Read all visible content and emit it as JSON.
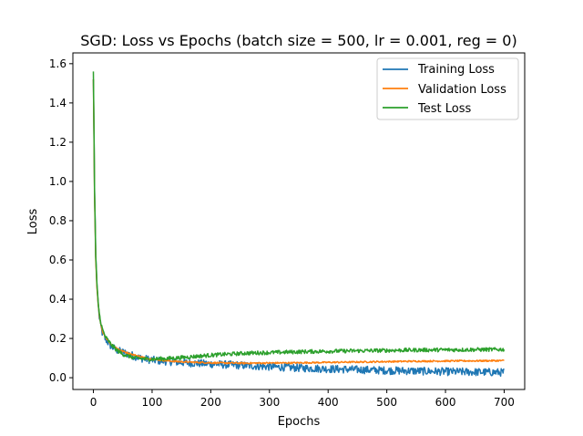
{
  "chart_data": {
    "type": "line",
    "title": "SGD: Loss vs Epochs (batch size = 500, lr = 0.001, reg = 0)",
    "xlabel": "Epochs",
    "ylabel": "Loss",
    "xlim": [
      -35,
      735
    ],
    "ylim": [
      -0.06,
      1.655
    ],
    "xticks": [
      0,
      100,
      200,
      300,
      400,
      500,
      600,
      700
    ],
    "yticks": [
      0.0,
      0.2,
      0.4,
      0.6,
      0.8,
      1.0,
      1.2,
      1.4,
      1.6
    ],
    "xtick_labels": [
      "0",
      "100",
      "200",
      "300",
      "400",
      "500",
      "600",
      "700"
    ],
    "ytick_labels": [
      "0.0",
      "0.2",
      "0.4",
      "0.6",
      "0.8",
      "1.0",
      "1.2",
      "1.4",
      "1.6"
    ],
    "grid": false,
    "legend_position": "top-right",
    "series": [
      {
        "name": "Training Loss",
        "color": "#1f77b4",
        "x": [
          0,
          2,
          4,
          6,
          8,
          10,
          12,
          15,
          20,
          25,
          30,
          40,
          50,
          60,
          70,
          80,
          90,
          100,
          120,
          140,
          160,
          180,
          200,
          230,
          260,
          300,
          350,
          400,
          450,
          500,
          550,
          600,
          650,
          700
        ],
        "y": [
          1.52,
          0.95,
          0.62,
          0.47,
          0.38,
          0.31,
          0.27,
          0.23,
          0.2,
          0.18,
          0.16,
          0.14,
          0.13,
          0.12,
          0.11,
          0.1,
          0.095,
          0.09,
          0.085,
          0.08,
          0.076,
          0.073,
          0.07,
          0.066,
          0.062,
          0.056,
          0.05,
          0.045,
          0.041,
          0.037,
          0.034,
          0.031,
          0.029,
          0.027
        ],
        "noise": 0.02
      },
      {
        "name": "Validation Loss",
        "color": "#ff7f0e",
        "x": [
          0,
          2,
          4,
          6,
          8,
          10,
          12,
          15,
          20,
          25,
          30,
          40,
          50,
          60,
          70,
          80,
          90,
          100,
          120,
          140,
          160,
          180,
          200,
          230,
          260,
          300,
          350,
          400,
          450,
          500,
          550,
          600,
          650,
          700
        ],
        "y": [
          1.52,
          0.92,
          0.6,
          0.46,
          0.38,
          0.32,
          0.28,
          0.24,
          0.21,
          0.19,
          0.17,
          0.15,
          0.135,
          0.125,
          0.115,
          0.108,
          0.1,
          0.095,
          0.088,
          0.083,
          0.08,
          0.078,
          0.076,
          0.075,
          0.074,
          0.075,
          0.076,
          0.078,
          0.08,
          0.082,
          0.084,
          0.085,
          0.086,
          0.087
        ],
        "noise": 0.004
      },
      {
        "name": "Test Loss",
        "color": "#2ca02c",
        "x": [
          0,
          2,
          4,
          6,
          8,
          10,
          12,
          15,
          20,
          25,
          30,
          40,
          50,
          60,
          70,
          80,
          90,
          100,
          120,
          140,
          160,
          180,
          200,
          230,
          260,
          300,
          350,
          400,
          450,
          500,
          550,
          600,
          650,
          700
        ],
        "y": [
          1.56,
          0.95,
          0.62,
          0.48,
          0.39,
          0.33,
          0.29,
          0.25,
          0.21,
          0.19,
          0.17,
          0.14,
          0.12,
          0.11,
          0.1,
          0.098,
          0.095,
          0.095,
          0.097,
          0.1,
          0.105,
          0.11,
          0.115,
          0.12,
          0.125,
          0.128,
          0.132,
          0.135,
          0.137,
          0.139,
          0.141,
          0.142,
          0.143,
          0.144
        ],
        "noise": 0.01
      }
    ]
  }
}
